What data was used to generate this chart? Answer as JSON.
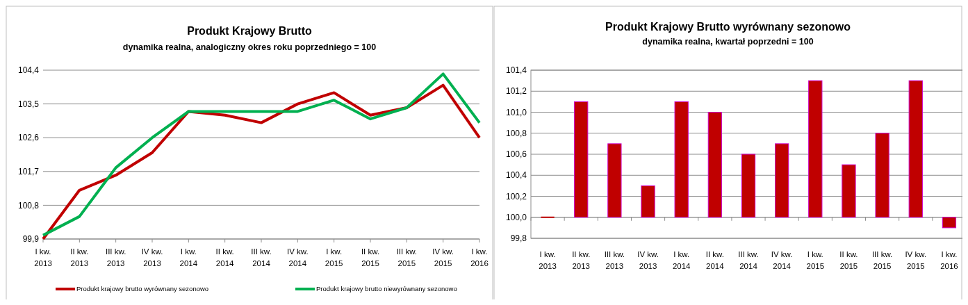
{
  "chart_data": [
    {
      "type": "line",
      "title": "Produkt Krajowy Brutto",
      "subtitle": "dynamika realna, analogiczny okres roku poprzedniego = 100",
      "categories": [
        "I kw. 2013",
        "II kw. 2013",
        "III kw. 2013",
        "IV kw. 2013",
        "I kw. 2014",
        "II kw. 2014",
        "III kw. 2014",
        "IV kw. 2014",
        "I kw. 2015",
        "II kw. 2015",
        "III kw. 2015",
        "IV kw. 2015",
        "I kw. 2016"
      ],
      "series": [
        {
          "name": "Produkt krajowy brutto wyrównany sezonowo",
          "color": "#c00000",
          "values": [
            99.9,
            101.2,
            101.6,
            102.2,
            103.3,
            103.2,
            103.0,
            103.5,
            103.8,
            103.2,
            103.4,
            104.0,
            102.6
          ]
        },
        {
          "name": "Produkt krajowy brutto niewyrównany sezonowo",
          "color": "#00b050",
          "values": [
            100.0,
            100.5,
            101.8,
            102.6,
            103.3,
            103.3,
            103.3,
            103.3,
            103.6,
            103.1,
            103.4,
            104.3,
            103.0
          ]
        }
      ],
      "ylim": [
        99.9,
        104.4
      ],
      "yticks": [
        {
          "value": 99.9,
          "label": "99,9"
        },
        {
          "value": 100.8,
          "label": "100,8"
        },
        {
          "value": 101.7,
          "label": "101,7"
        },
        {
          "value": 102.6,
          "label": "102,6"
        },
        {
          "value": 103.5,
          "label": "103,5"
        },
        {
          "value": 104.4,
          "label": "104,4"
        }
      ],
      "grid": "y",
      "legend": "bottom",
      "marker": "none",
      "line_style": "solid"
    },
    {
      "type": "bar",
      "title": "Produkt Krajowy Brutto wyrównany sezonowo",
      "subtitle": "dynamika realna, kwartał poprzedni = 100",
      "categories": [
        "I kw. 2013",
        "II kw. 2013",
        "III kw. 2013",
        "IV kw. 2013",
        "I kw. 2014",
        "II kw. 2014",
        "III kw. 2014",
        "IV kw. 2014",
        "I kw. 2015",
        "II kw. 2015",
        "III kw. 2015",
        "IV kw. 2015",
        "I kw. 2016"
      ],
      "base": [
        100,
        100,
        100,
        100,
        100,
        100,
        100,
        100,
        100,
        100,
        100,
        100,
        100
      ],
      "values": [
        0.0,
        1.1,
        0.7,
        0.3,
        1.1,
        1.0,
        0.6,
        0.7,
        1.3,
        0.5,
        0.8,
        1.3,
        -0.1
      ],
      "color": "#c00000",
      "ylim": [
        99.8,
        101.4
      ],
      "yticks": [
        {
          "value": 99.8,
          "label": "99,8"
        },
        {
          "value": 100.0,
          "label": "100,0"
        },
        {
          "value": 100.2,
          "label": "100,2"
        },
        {
          "value": 100.4,
          "label": "100,4"
        },
        {
          "value": 100.6,
          "label": "100,6"
        },
        {
          "value": 100.8,
          "label": "100,8"
        },
        {
          "value": 101.0,
          "label": "101,0"
        },
        {
          "value": 101.2,
          "label": "101,2"
        },
        {
          "value": 101.4,
          "label": "101,4"
        }
      ],
      "grid": "y"
    }
  ]
}
